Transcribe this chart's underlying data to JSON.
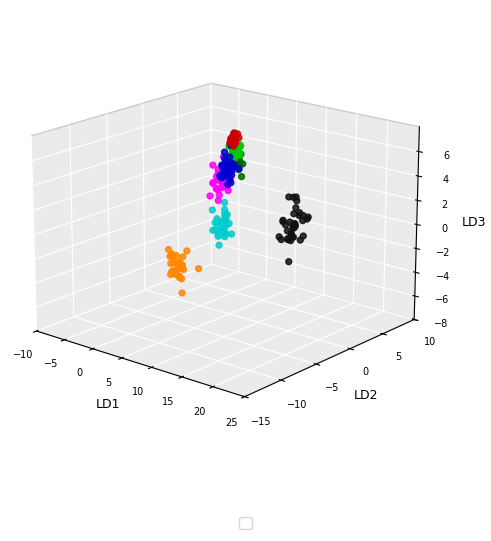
{
  "colors": {
    "1": "#0000cc",
    "2": "#00cc00",
    "3": "#ff8800",
    "4": "#111111",
    "5": "#ff00ff",
    "6": "#cc0000",
    "7": "#00cccc",
    "8": "#006600"
  },
  "clusters": {
    "1": {
      "ld1": 6.0,
      "ld2": -1.0,
      "ld3": 4.5,
      "n": 40,
      "s1": 0.5,
      "s2": 0.5,
      "s3": 0.7
    },
    "2": {
      "ld1": 6.5,
      "ld2": -0.5,
      "ld3": 6.0,
      "n": 25,
      "s1": 0.4,
      "s2": 0.4,
      "s3": 0.5
    },
    "3": {
      "ld1": -5.5,
      "ld2": 1.0,
      "ld3": -5.5,
      "n": 30,
      "s1": 0.9,
      "s2": 0.5,
      "s3": 0.7
    },
    "4": {
      "ld1": 10.0,
      "ld2": 5.0,
      "ld3": -1.0,
      "n": 35,
      "s1": 1.2,
      "s2": 1.0,
      "s3": 1.2
    },
    "5": {
      "ld1": 5.5,
      "ld2": -1.5,
      "ld3": 3.5,
      "n": 30,
      "s1": 0.5,
      "s2": 0.5,
      "s3": 0.7
    },
    "6": {
      "ld1": 6.5,
      "ld2": -0.5,
      "ld3": 7.0,
      "n": 15,
      "s1": 0.3,
      "s2": 0.3,
      "s3": 0.4
    },
    "7": {
      "ld1": 4.5,
      "ld2": -0.5,
      "ld3": -0.5,
      "n": 30,
      "s1": 0.6,
      "s2": 0.5,
      "s3": 0.8
    },
    "8": {
      "ld1": 6.5,
      "ld2": 0.0,
      "ld3": 5.0,
      "n": 15,
      "s1": 0.4,
      "s2": 0.3,
      "s3": 0.5
    }
  },
  "xlabel": "LD1",
  "ylabel": "LD2",
  "zlabel": "LD3",
  "xlim": [
    -10,
    25
  ],
  "ylim": [
    -15,
    10
  ],
  "zlim": [
    -8,
    8
  ],
  "xticks": [
    -10,
    -5,
    0,
    5,
    10,
    15,
    20,
    25
  ],
  "yticks": [
    -15,
    -10,
    -5,
    0,
    5,
    10
  ],
  "zticks": [
    -8,
    -6,
    -4,
    -2,
    0,
    2,
    4,
    6
  ],
  "marker_size": 18,
  "elev": 18,
  "azim": -50,
  "legend_order": [
    "1",
    "2",
    "4",
    "6",
    "3",
    "5",
    "7",
    "8"
  ]
}
